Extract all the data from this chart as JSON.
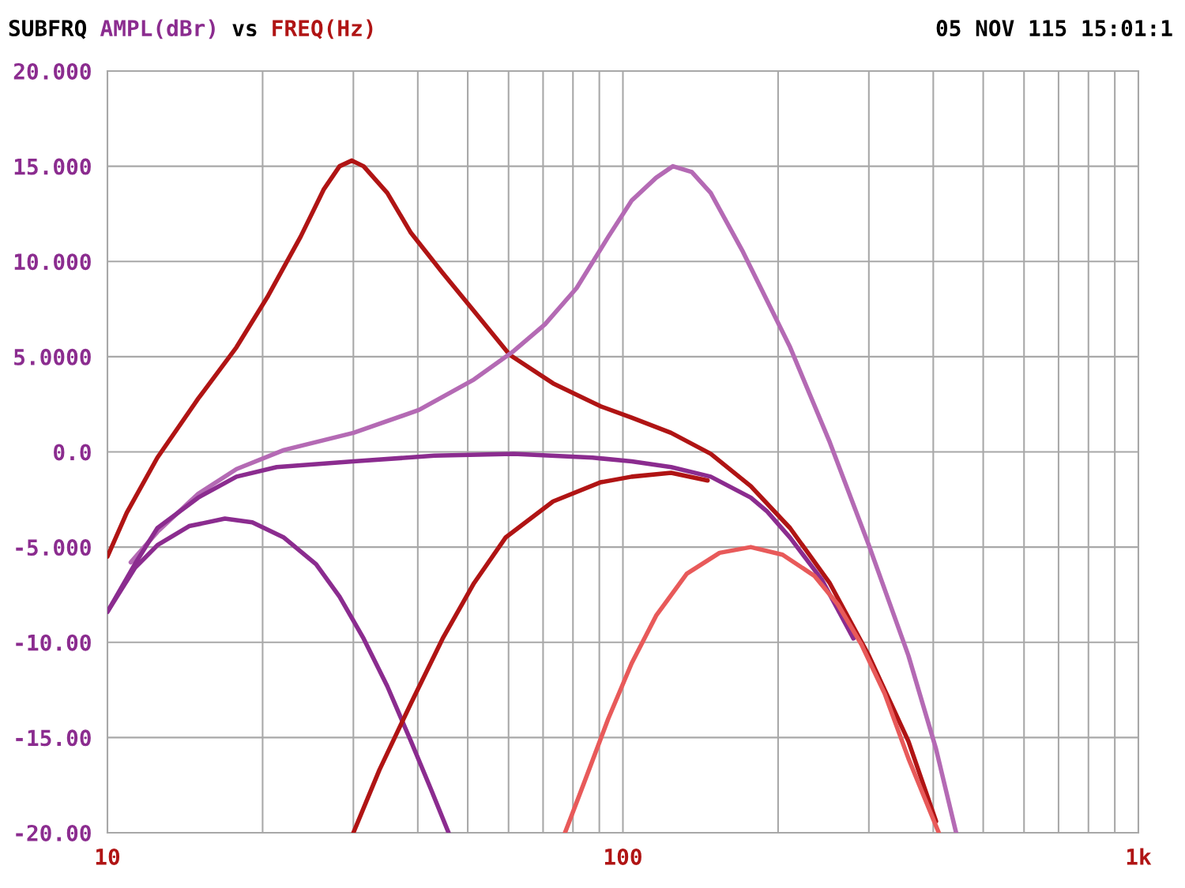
{
  "chart_data": {
    "type": "line",
    "title": "SUBFRQ",
    "ylabel": "AMPL(dBr)",
    "xlabel": "FREQ(Hz)",
    "annotations": [
      "vs",
      "05 NOV 115 15:01:1"
    ],
    "log": "x",
    "grid": true,
    "marker": "none",
    "line_style": "solid",
    "xlim": [
      10,
      1000
    ],
    "xticks": [
      10,
      {
        "value": 20,
        "label": null
      },
      {
        "value": 30,
        "label": null
      },
      {
        "value": 40,
        "label": null
      },
      {
        "value": 50,
        "label": null
      },
      {
        "value": 60,
        "label": null
      },
      {
        "value": 70,
        "label": null
      },
      {
        "value": 80,
        "label": null
      },
      {
        "value": 90,
        "label": null
      },
      100,
      {
        "value": 200,
        "label": null
      },
      {
        "value": 300,
        "label": null
      },
      {
        "value": 400,
        "label": null
      },
      {
        "value": 500,
        "label": null
      },
      {
        "value": 600,
        "label": null
      },
      {
        "value": 700,
        "label": null
      },
      {
        "value": 800,
        "label": null
      },
      {
        "value": 900,
        "label": null
      },
      {
        "value": 1000,
        "label": "1k"
      }
    ],
    "ylim": [
      -20,
      20
    ],
    "yticks": [
      {
        "value": 20,
        "label": "20.000"
      },
      {
        "value": 15,
        "label": "15.000"
      },
      {
        "value": 10,
        "label": "10.000"
      },
      {
        "value": 5,
        "label": "5.0000"
      },
      {
        "value": 0,
        "label": "0.0"
      },
      {
        "value": -5,
        "label": "-5.000"
      },
      {
        "value": -10,
        "label": "-10.00"
      },
      {
        "value": -15,
        "label": "-15.00"
      },
      {
        "value": -20,
        "label": "-20.00"
      }
    ],
    "series": [
      {
        "color": "#b01414",
        "x": [
          10,
          10.9,
          12.5,
          15.0,
          17.8,
          20.5,
          23.7,
          26.3,
          28.2,
          29.8,
          31.4,
          34.9,
          38.8,
          44.7,
          51.4,
          60.3,
          73.2,
          90.4,
          104,
          124,
          148,
          177,
          211,
          252,
          300,
          358,
          405
        ],
        "values": [
          -5.5,
          -3.2,
          -0.3,
          2.8,
          5.5,
          8.2,
          11.3,
          13.8,
          15.0,
          15.3,
          15.0,
          13.6,
          11.5,
          9.4,
          7.4,
          5.1,
          3.6,
          2.4,
          1.8,
          1.0,
          -0.1,
          -1.8,
          -4.0,
          -6.9,
          -10.7,
          -15.2,
          -19.4
        ]
      },
      {
        "color": "#b46ab4",
        "x": [
          11.1,
          12.5,
          15.0,
          17.8,
          22.0,
          30.0,
          40.2,
          51.4,
          61.4,
          70.6,
          81.3,
          93.7,
          104,
          116,
          125,
          136,
          148,
          171,
          211,
          252,
          300,
          358,
          405,
          443
        ],
        "values": [
          -5.8,
          -4.2,
          -2.2,
          -0.9,
          0.1,
          1.0,
          2.2,
          3.8,
          5.3,
          6.7,
          8.6,
          11.3,
          13.2,
          14.4,
          15.0,
          14.7,
          13.6,
          10.5,
          5.5,
          0.5,
          -4.9,
          -10.7,
          -15.6,
          -20
        ]
      },
      {
        "color": "#8b2c8f",
        "x": [
          10,
          11.3,
          12.5,
          15.0,
          17.8,
          21.3,
          30.0,
          43.1,
          61.4,
          87.3,
          104,
          124,
          148,
          177,
          190,
          211,
          243,
          280
        ],
        "values": [
          -8.4,
          -5.9,
          -4.0,
          -2.4,
          -1.3,
          -0.8,
          -0.5,
          -0.2,
          -0.1,
          -0.3,
          -0.5,
          -0.8,
          -1.3,
          -2.4,
          -3.1,
          -4.5,
          -6.7,
          -9.8
        ]
      },
      {
        "color": "#8b2c8f",
        "x": [
          10,
          11.3,
          12.5,
          14.4,
          16.9,
          19.1,
          22.0,
          25.4,
          28.2,
          31.4,
          34.9,
          38.8,
          42.4,
          45.9
        ],
        "values": [
          -8.4,
          -6.1,
          -4.9,
          -3.9,
          -3.5,
          -3.7,
          -4.5,
          -5.9,
          -7.6,
          -9.8,
          -12.3,
          -15.2,
          -17.7,
          -20
        ]
      },
      {
        "color": "#b01414",
        "x": [
          30.0,
          33.7,
          38.8,
          44.7,
          51.4,
          59.2,
          73.2,
          90.4,
          104,
          124,
          146
        ],
        "values": [
          -20,
          -16.7,
          -13.2,
          -9.8,
          -6.9,
          -4.5,
          -2.6,
          -1.6,
          -1.3,
          -1.1,
          -1.5
        ]
      },
      {
        "color": "#e85a5a",
        "x": [
          77.2,
          84.3,
          93.7,
          104,
          116,
          133,
          154,
          177,
          204,
          235,
          261,
          290,
          322,
          358,
          410
        ],
        "values": [
          -20,
          -17.3,
          -14.0,
          -11.1,
          -8.6,
          -6.4,
          -5.3,
          -5.0,
          -5.4,
          -6.5,
          -8.0,
          -10.1,
          -12.7,
          -16.1,
          -20
        ]
      }
    ]
  }
}
